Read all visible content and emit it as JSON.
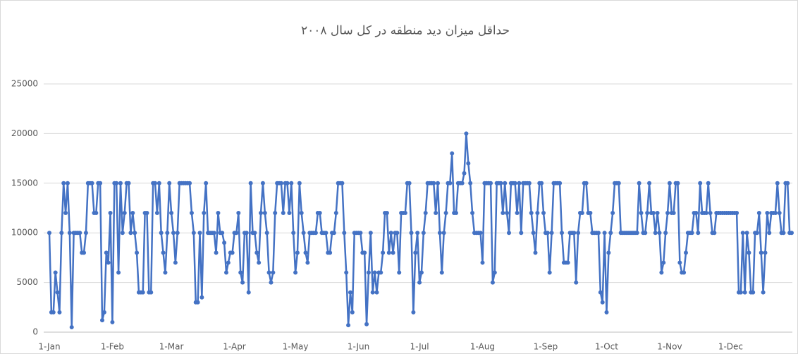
{
  "chart_data": {
    "type": "line",
    "title": "حداقل میزان دید منطقه در کل سال ۲۰۰۸",
    "categories": [
      "1-Jan",
      null,
      null,
      null,
      null,
      null,
      null,
      null,
      null,
      null,
      null,
      null,
      null,
      null,
      null,
      null,
      null,
      null,
      null,
      null,
      null,
      null,
      null,
      null,
      null,
      null,
      null,
      null,
      null,
      null,
      null,
      "1-Feb",
      null,
      null,
      null,
      null,
      null,
      null,
      null,
      null,
      null,
      null,
      null,
      null,
      null,
      null,
      null,
      null,
      null,
      null,
      null,
      null,
      null,
      null,
      null,
      null,
      null,
      null,
      null,
      null,
      "1-Mar",
      null,
      null,
      null,
      null,
      null,
      null,
      null,
      null,
      null,
      null,
      null,
      null,
      null,
      null,
      null,
      null,
      null,
      null,
      null,
      null,
      null,
      null,
      null,
      null,
      null,
      null,
      null,
      null,
      null,
      null,
      "1-Apr",
      null,
      null,
      null,
      null,
      null,
      null,
      null,
      null,
      null,
      null,
      null,
      null,
      null,
      null,
      null,
      null,
      null,
      null,
      null,
      null,
      null,
      null,
      null,
      null,
      null,
      null,
      null,
      null,
      null,
      "1-May",
      null,
      null,
      null,
      null,
      null,
      null,
      null,
      null,
      null,
      null,
      null,
      null,
      null,
      null,
      null,
      null,
      null,
      null,
      null,
      null,
      null,
      null,
      null,
      null,
      null,
      null,
      null,
      null,
      null,
      null,
      "1-Jun",
      null,
      null,
      null,
      null,
      null,
      null,
      null,
      null,
      null,
      null,
      null,
      null,
      null,
      null,
      null,
      null,
      null,
      null,
      null,
      null,
      null,
      null,
      null,
      null,
      null,
      null,
      null,
      null,
      null,
      "1-Jul",
      null,
      null,
      null,
      null,
      null,
      null,
      null,
      null,
      null,
      null,
      null,
      null,
      null,
      null,
      null,
      null,
      null,
      null,
      null,
      null,
      null,
      null,
      null,
      null,
      null,
      null,
      null,
      null,
      null,
      null,
      "1-Aug",
      null,
      null,
      null,
      null,
      null,
      null,
      null,
      null,
      null,
      null,
      null,
      null,
      null,
      null,
      null,
      null,
      null,
      null,
      null,
      null,
      null,
      null,
      null,
      null,
      null,
      null,
      null,
      null,
      null,
      null,
      "1-Sep",
      null,
      null,
      null,
      null,
      null,
      null,
      null,
      null,
      null,
      null,
      null,
      null,
      null,
      null,
      null,
      null,
      null,
      null,
      null,
      null,
      null,
      null,
      null,
      null,
      null,
      null,
      null,
      null,
      null,
      "1-Oct",
      null,
      null,
      null,
      null,
      null,
      null,
      null,
      null,
      null,
      null,
      null,
      null,
      null,
      null,
      null,
      null,
      null,
      null,
      null,
      null,
      null,
      null,
      null,
      null,
      null,
      null,
      null,
      null,
      null,
      null,
      "1-Nov",
      null,
      null,
      null,
      null,
      null,
      null,
      null,
      null,
      null,
      null,
      null,
      null,
      null,
      null,
      null,
      null,
      null,
      null,
      null,
      null,
      null,
      null,
      null,
      null,
      null,
      null,
      null,
      null,
      null,
      "1-Dec",
      null,
      null,
      null,
      null,
      null,
      null,
      null,
      null,
      null,
      null,
      null,
      null,
      null,
      null,
      null,
      null,
      null,
      null,
      null,
      null,
      null,
      null,
      null,
      null,
      null,
      null,
      null,
      null,
      null,
      null
    ],
    "values": [
      10000,
      2000,
      2000,
      6000,
      4000,
      2000,
      10000,
      15000,
      12000,
      15000,
      10000,
      500,
      10000,
      10000,
      10000,
      10000,
      8000,
      8000,
      10000,
      15000,
      15000,
      15000,
      12000,
      12000,
      15000,
      15000,
      1200,
      2000,
      8000,
      7000,
      12000,
      1000,
      15000,
      15000,
      6000,
      15000,
      10000,
      12000,
      15000,
      15000,
      10000,
      12000,
      10000,
      8000,
      4000,
      4000,
      4000,
      12000,
      12000,
      4000,
      4000,
      15000,
      15000,
      12000,
      15000,
      10000,
      8000,
      6000,
      10000,
      15000,
      12000,
      10000,
      7000,
      10000,
      15000,
      15000,
      15000,
      15000,
      15000,
      15000,
      12000,
      10000,
      3000,
      3000,
      10000,
      3500,
      12000,
      15000,
      10000,
      10000,
      10000,
      10000,
      8000,
      12000,
      10000,
      10000,
      9000,
      6000,
      7000,
      8000,
      8000,
      10000,
      10000,
      12000,
      6000,
      5000,
      10000,
      10000,
      4000,
      15000,
      10000,
      10000,
      8000,
      7000,
      12000,
      15000,
      12000,
      10000,
      6000,
      5000,
      6000,
      12000,
      15000,
      15000,
      15000,
      12000,
      15000,
      15000,
      12000,
      15000,
      10000,
      6000,
      8000,
      15000,
      12000,
      10000,
      8000,
      7000,
      10000,
      10000,
      10000,
      10000,
      12000,
      12000,
      10000,
      10000,
      10000,
      8000,
      8000,
      10000,
      10000,
      12000,
      15000,
      15000,
      15000,
      10000,
      6000,
      700,
      4000,
      2000,
      10000,
      10000,
      10000,
      10000,
      8000,
      8000,
      800,
      6000,
      10000,
      4000,
      6000,
      4000,
      6000,
      6000,
      8000,
      12000,
      12000,
      8000,
      10000,
      8000,
      10000,
      10000,
      6000,
      12000,
      12000,
      12000,
      15000,
      15000,
      10000,
      2000,
      8000,
      10000,
      5000,
      6000,
      10000,
      12000,
      15000,
      15000,
      15000,
      15000,
      12000,
      15000,
      10000,
      6000,
      10000,
      12000,
      15000,
      15000,
      18000,
      12000,
      12000,
      15000,
      15000,
      15000,
      16000,
      20000,
      17000,
      15000,
      12000,
      10000,
      10000,
      10000,
      10000,
      7000,
      15000,
      15000,
      15000,
      15000,
      5000,
      6000,
      15000,
      15000,
      15000,
      12000,
      15000,
      12000,
      10000,
      15000,
      15000,
      15000,
      12000,
      15000,
      10000,
      15000,
      15000,
      15000,
      15000,
      12000,
      10000,
      8000,
      12000,
      15000,
      15000,
      12000,
      10000,
      10000,
      6000,
      10000,
      15000,
      15000,
      15000,
      15000,
      10000,
      7000,
      7000,
      7000,
      10000,
      10000,
      10000,
      5000,
      10000,
      12000,
      12000,
      15000,
      15000,
      12000,
      12000,
      10000,
      10000,
      10000,
      10000,
      4000,
      3000,
      10000,
      2000,
      8000,
      10000,
      12000,
      15000,
      15000,
      15000,
      10000,
      10000,
      10000,
      10000,
      10000,
      10000,
      10000,
      10000,
      10000,
      15000,
      12000,
      10000,
      10000,
      12000,
      15000,
      12000,
      12000,
      10000,
      12000,
      10000,
      6000,
      7000,
      10000,
      12000,
      15000,
      12000,
      12000,
      15000,
      15000,
      7000,
      6000,
      6000,
      8000,
      10000,
      10000,
      10000,
      12000,
      12000,
      10000,
      15000,
      12000,
      12000,
      12000,
      15000,
      12000,
      10000,
      10000,
      12000,
      12000,
      12000,
      12000,
      12000,
      12000,
      12000,
      12000,
      12000,
      12000,
      12000,
      4000,
      4000,
      10000,
      4000,
      10000,
      8000,
      4000,
      4000,
      10000,
      10000,
      12000,
      8000,
      4000,
      8000,
      12000,
      10000,
      12000,
      12000,
      12000,
      15000,
      12000,
      10000,
      10000,
      15000,
      15000,
      10000,
      10000
    ],
    "color": "#4472c4",
    "ylim": [
      0,
      25000
    ],
    "yticks": [
      0,
      5000,
      10000,
      15000,
      20000,
      25000
    ],
    "grid": true
  }
}
